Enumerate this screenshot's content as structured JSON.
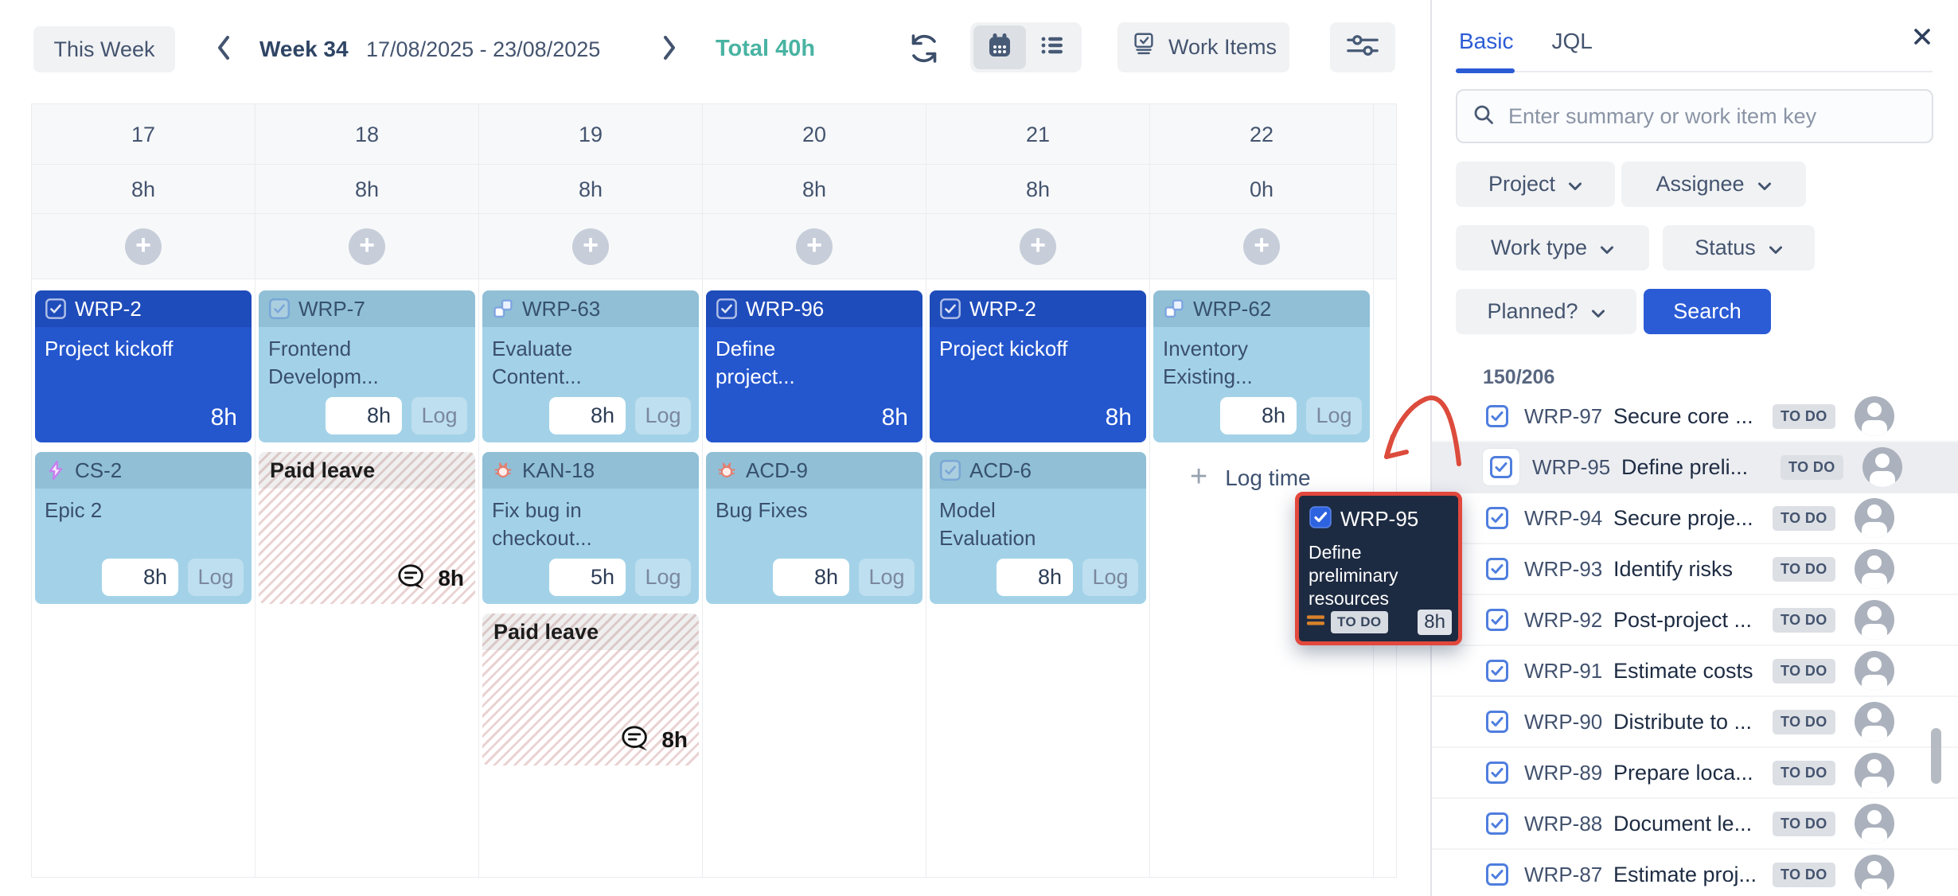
{
  "colors": {
    "accent_blue": "#2B5CD6",
    "total_teal": "#49B3A2",
    "card_dark_blue": "#2456CE",
    "card_light_blue": "#A3D2E8",
    "drag_card_bg": "#1D2B42",
    "drag_border_red": "#E2483D",
    "annotation_arrow_red": "#DC4B3C",
    "status_badge_bg": "#DCDFE4",
    "leave_stripe_red": "#BA6C6C",
    "header_row_bg": "#F7F8F9"
  },
  "toolbar": {
    "this_week": "This Week",
    "week_label": "Week 34",
    "date_range": "17/08/2025 - 23/08/2025",
    "total_label": "Total 40h",
    "work_items_label": "Work Items"
  },
  "calendar": {
    "log_label": "Log",
    "log_time_label": "Log time",
    "days": [
      {
        "day": "17",
        "total": "8h",
        "cards": [
          {
            "variant": "dark",
            "key": "WRP-2",
            "type_icon": "task-dark-icon",
            "summary": "Project kickoff",
            "hours": "8h"
          },
          {
            "variant": "light",
            "key": "CS-2",
            "type_icon": "epic-icon",
            "summary": "Epic 2",
            "hours": "8h"
          }
        ]
      },
      {
        "day": "18",
        "total": "8h",
        "cards": [
          {
            "variant": "light",
            "key": "WRP-7",
            "type_icon": "task-faded-icon",
            "summary": "Frontend Developm...",
            "hours": "8h"
          },
          {
            "variant": "leave",
            "title": "Paid leave",
            "hours": "8h"
          }
        ]
      },
      {
        "day": "19",
        "total": "8h",
        "cards": [
          {
            "variant": "light",
            "key": "WRP-63",
            "type_icon": "subtask-icon",
            "summary": "Evaluate Content...",
            "hours": "8h"
          },
          {
            "variant": "light",
            "key": "KAN-18",
            "type_icon": "bug-icon",
            "summary": "Fix bug in checkout...",
            "hours": "5h"
          },
          {
            "variant": "leave",
            "title": "Paid leave",
            "hours": "8h"
          }
        ]
      },
      {
        "day": "20",
        "total": "8h",
        "cards": [
          {
            "variant": "dark",
            "key": "WRP-96",
            "type_icon": "task-dark-icon",
            "summary": "Define project...",
            "hours": "8h"
          },
          {
            "variant": "light",
            "key": "ACD-9",
            "type_icon": "bug-icon",
            "summary": "Bug Fixes",
            "hours": "8h"
          }
        ]
      },
      {
        "day": "21",
        "total": "8h",
        "cards": [
          {
            "variant": "dark",
            "key": "WRP-2",
            "type_icon": "task-dark-icon",
            "summary": "Project kickoff",
            "hours": "8h"
          },
          {
            "variant": "light",
            "key": "ACD-6",
            "type_icon": "task-faded-icon",
            "summary": "Model Evaluation",
            "hours": "8h"
          }
        ]
      },
      {
        "day": "22",
        "total": "0h",
        "log_time": true,
        "cards": [
          {
            "variant": "light",
            "key": "WRP-62",
            "type_icon": "subtask-icon",
            "summary": "Inventory Existing...",
            "hours": "8h"
          }
        ]
      }
    ]
  },
  "drag_card": {
    "key": "WRP-95",
    "type_icon": "task-filled-icon",
    "summary": "Define preliminary resources",
    "priority_icon": "priority-medium-icon",
    "status": "TO DO",
    "hours": "8h"
  },
  "panel": {
    "tabs": {
      "basic": "Basic",
      "jql": "JQL"
    },
    "search_placeholder": "Enter summary or work item key",
    "filters": {
      "project": "Project",
      "assignee": "Assignee",
      "work_type": "Work type",
      "status": "Status",
      "planned": "Planned?"
    },
    "search_button": "Search",
    "result_count": "150/206",
    "items": [
      {
        "key": "WRP-97",
        "summary": "Secure core ...",
        "status": "TO DO"
      },
      {
        "key": "WRP-95",
        "summary": "Define preli...",
        "status": "TO DO",
        "highlighted": true
      },
      {
        "key": "WRP-94",
        "summary": "Secure proje...",
        "status": "TO DO"
      },
      {
        "key": "WRP-93",
        "summary": "Identify risks",
        "status": "TO DO"
      },
      {
        "key": "WRP-92",
        "summary": "Post-project ...",
        "status": "TO DO"
      },
      {
        "key": "WRP-91",
        "summary": "Estimate costs",
        "status": "TO DO"
      },
      {
        "key": "WRP-90",
        "summary": "Distribute to ...",
        "status": "TO DO"
      },
      {
        "key": "WRP-89",
        "summary": "Prepare loca...",
        "status": "TO DO"
      },
      {
        "key": "WRP-88",
        "summary": "Document le...",
        "status": "TO DO"
      },
      {
        "key": "WRP-87",
        "summary": "Estimate proj...",
        "status": "TO DO"
      }
    ]
  }
}
